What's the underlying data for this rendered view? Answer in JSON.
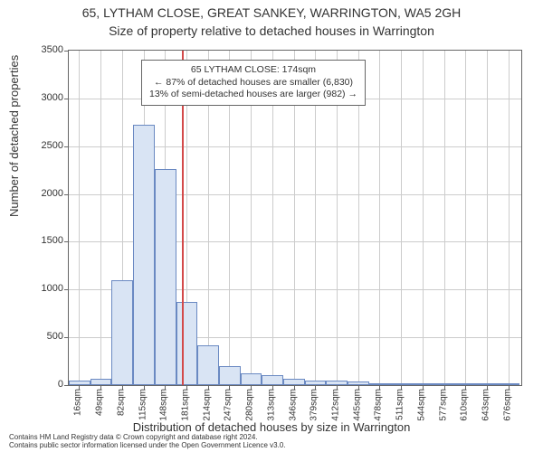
{
  "title": {
    "line1": "65, LYTHAM CLOSE, GREAT SANKEY, WARRINGTON, WA5 2GH",
    "line2": "Size of property relative to detached houses in Warrington",
    "fontsize": 14,
    "color": "#333333"
  },
  "chart": {
    "type": "histogram",
    "background_color": "#ffffff",
    "border_color": "#666666",
    "grid_color": "#cccccc",
    "bar_fill": "#d9e4f4",
    "bar_border": "#6a89c2",
    "reference_line_color": "#d34a4a",
    "reference_value": 174,
    "x_range": [
      0,
      696
    ],
    "x_tick_start": 16,
    "x_tick_step": 33,
    "x_tick_unit": "sqm",
    "y_range": [
      0,
      3500
    ],
    "y_tick_step": 500,
    "bar_bin_width": 33,
    "bars": [
      {
        "x_start": 0,
        "value": 50
      },
      {
        "x_start": 33,
        "value": 70
      },
      {
        "x_start": 66,
        "value": 1100
      },
      {
        "x_start": 99,
        "value": 2720
      },
      {
        "x_start": 132,
        "value": 2260
      },
      {
        "x_start": 165,
        "value": 870
      },
      {
        "x_start": 198,
        "value": 420
      },
      {
        "x_start": 231,
        "value": 200
      },
      {
        "x_start": 264,
        "value": 120
      },
      {
        "x_start": 297,
        "value": 100
      },
      {
        "x_start": 330,
        "value": 70
      },
      {
        "x_start": 363,
        "value": 50
      },
      {
        "x_start": 396,
        "value": 50
      },
      {
        "x_start": 429,
        "value": 40
      },
      {
        "x_start": 462,
        "value": 10
      },
      {
        "x_start": 495,
        "value": 10
      },
      {
        "x_start": 528,
        "value": 5
      },
      {
        "x_start": 561,
        "value": 5
      },
      {
        "x_start": 594,
        "value": 5
      },
      {
        "x_start": 627,
        "value": 5
      },
      {
        "x_start": 660,
        "value": 5
      }
    ]
  },
  "annotation": {
    "line1": "65 LYTHAM CLOSE: 174sqm",
    "line2": "← 87% of detached houses are smaller (6,830)",
    "line3": "13% of semi-detached houses are larger (982) →",
    "border_color": "#666666",
    "background_color": "#ffffff",
    "fontsize": 10.5
  },
  "y_axis": {
    "label": "Number of detached properties",
    "label_fontsize": 13
  },
  "x_axis": {
    "label": "Distribution of detached houses by size in Warrington",
    "label_fontsize": 13
  },
  "footer": {
    "line1": "Contains HM Land Registry data © Crown copyright and database right 2024.",
    "line2": "Contains public sector information licensed under the Open Government Licence v3.0.",
    "fontsize": 8
  }
}
